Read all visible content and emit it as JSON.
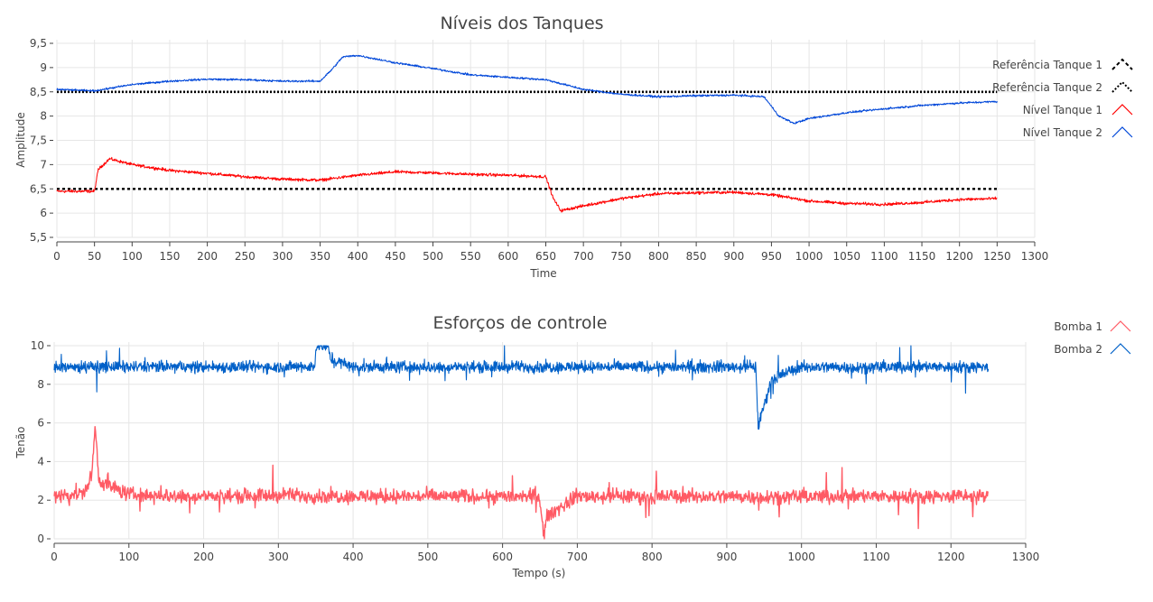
{
  "colors": {
    "nivel1": "#ff0000",
    "nivel2": "#0047d9",
    "referencia": "#000000",
    "bomba1": "#ff5a64",
    "bomba2": "#0060c8"
  },
  "chart_data": [
    {
      "type": "line",
      "title": "Níveis dos Tanques",
      "xlabel": "Time",
      "ylabel": "Amplitude",
      "xlim": [
        0,
        1300
      ],
      "ylim": [
        5.5,
        9.5
      ],
      "x_ticks": [
        0,
        50,
        100,
        150,
        200,
        250,
        300,
        350,
        400,
        450,
        500,
        550,
        600,
        650,
        700,
        750,
        800,
        850,
        900,
        950,
        1000,
        1050,
        1100,
        1150,
        1200,
        1250,
        1300
      ],
      "x_tick_labels": [
        "0",
        "50",
        "100",
        "150",
        "200",
        "250",
        "300",
        "350",
        "400",
        "450",
        "500",
        "550",
        "600",
        "650",
        "700",
        "750",
        "800",
        "850",
        "900",
        "950",
        "1000",
        "1050",
        "1100",
        "1150",
        "1200",
        "1250",
        "1300"
      ],
      "y_ticks": [
        5.5,
        6,
        6.5,
        7,
        7.5,
        8,
        8.5,
        9,
        9.5
      ],
      "y_tick_labels": [
        "5,5",
        "6",
        "6,5",
        "7",
        "7,5",
        "8",
        "8,5",
        "9",
        "9,5"
      ],
      "grid": true,
      "legend_position": "right",
      "series": [
        {
          "name": "Referência Tanque 1",
          "style": "dashed",
          "x": [
            0,
            50,
            50,
            650,
            650,
            1250
          ],
          "y": [
            6.5,
            6.5,
            6.5,
            6.5,
            6.5,
            6.5
          ]
        },
        {
          "name": "Referência Tanque 2",
          "style": "dotted",
          "x": [
            0,
            1250
          ],
          "y": [
            8.5,
            8.5
          ]
        },
        {
          "name": "Nível Tanque 1",
          "style": "noisy",
          "x": [
            0,
            50,
            55,
            70,
            100,
            150,
            200,
            250,
            300,
            350,
            400,
            450,
            500,
            550,
            600,
            650,
            660,
            670,
            700,
            750,
            800,
            850,
            900,
            950,
            1000,
            1050,
            1100,
            1150,
            1200,
            1250
          ],
          "y": [
            6.45,
            6.45,
            6.9,
            7.12,
            7.0,
            6.88,
            6.82,
            6.75,
            6.7,
            6.68,
            6.78,
            6.85,
            6.83,
            6.8,
            6.78,
            6.75,
            6.3,
            6.05,
            6.15,
            6.3,
            6.4,
            6.42,
            6.43,
            6.38,
            6.25,
            6.2,
            6.18,
            6.22,
            6.28,
            6.3
          ]
        },
        {
          "name": "Nível Tanque 2",
          "style": "noisy",
          "x": [
            0,
            50,
            100,
            150,
            200,
            250,
            300,
            350,
            365,
            380,
            400,
            450,
            500,
            550,
            600,
            650,
            700,
            750,
            800,
            850,
            900,
            940,
            960,
            980,
            1000,
            1050,
            1100,
            1150,
            1200,
            1250
          ],
          "y": [
            8.55,
            8.52,
            8.65,
            8.72,
            8.76,
            8.75,
            8.72,
            8.72,
            8.95,
            9.22,
            9.25,
            9.1,
            8.98,
            8.85,
            8.8,
            8.75,
            8.55,
            8.45,
            8.4,
            8.42,
            8.43,
            8.4,
            8.0,
            7.85,
            7.95,
            8.07,
            8.15,
            8.22,
            8.27,
            8.3
          ]
        }
      ]
    },
    {
      "type": "line",
      "title": "Esforços de controle",
      "xlabel": "Tempo (s)",
      "ylabel": "Tenão",
      "xlim": [
        0,
        1300
      ],
      "ylim": [
        0,
        10
      ],
      "x_ticks": [
        0,
        100,
        200,
        300,
        400,
        500,
        600,
        700,
        800,
        900,
        1000,
        1100,
        1200,
        1300
      ],
      "x_tick_labels": [
        "0",
        "100",
        "200",
        "300",
        "400",
        "500",
        "600",
        "700",
        "800",
        "900",
        "1000",
        "1100",
        "1200",
        "1300"
      ],
      "y_ticks": [
        0,
        2,
        4,
        6,
        8,
        10
      ],
      "y_tick_labels": [
        "0",
        "2",
        "4",
        "6",
        "8",
        "10"
      ],
      "grid": true,
      "legend_position": "top-right",
      "series": [
        {
          "name": "Bomba 1",
          "style": "noisy",
          "x": [
            0,
            40,
            50,
            55,
            60,
            100,
            200,
            300,
            400,
            500,
            600,
            650,
            655,
            660,
            700,
            800,
            900,
            1000,
            1100,
            1200,
            1250
          ],
          "y": [
            2.2,
            2.4,
            3.2,
            5.8,
            3.0,
            2.3,
            2.2,
            2.25,
            2.2,
            2.2,
            2.2,
            2.2,
            0.2,
            1.2,
            2.2,
            2.2,
            2.2,
            2.2,
            2.2,
            2.2,
            2.2
          ]
        },
        {
          "name": "Bomba 2",
          "style": "noisy",
          "x": [
            0,
            100,
            200,
            300,
            349,
            350,
            365,
            370,
            400,
            500,
            600,
            700,
            800,
            900,
            939,
            942,
            960,
            1000,
            1100,
            1200,
            1250
          ],
          "y": [
            8.9,
            8.9,
            8.9,
            8.9,
            8.9,
            10.0,
            10.0,
            9.3,
            8.9,
            8.9,
            8.9,
            8.9,
            8.9,
            8.9,
            8.9,
            5.8,
            8.3,
            8.9,
            8.9,
            8.9,
            8.9
          ]
        }
      ]
    }
  ]
}
